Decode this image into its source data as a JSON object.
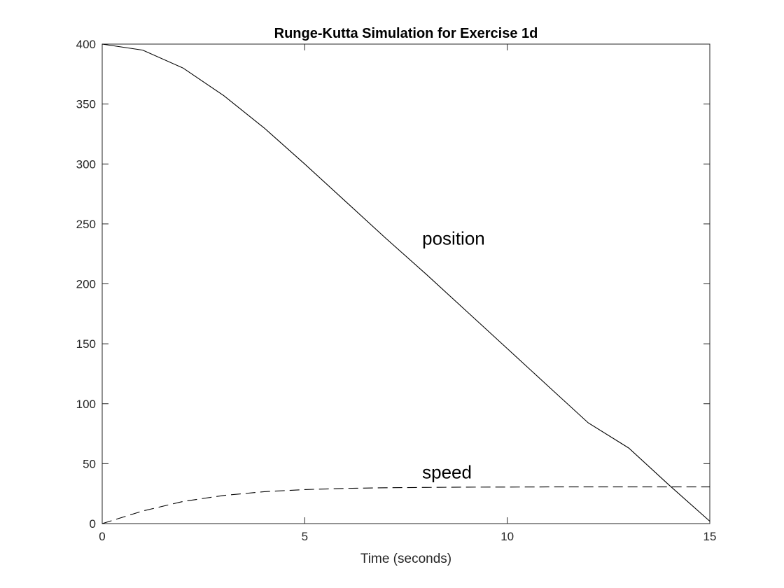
{
  "chart_data": {
    "type": "line",
    "title": "Runge-Kutta Simulation for Exercise 1d",
    "xlabel": "Time (seconds)",
    "ylabel": "",
    "xlim": [
      0,
      15
    ],
    "ylim": [
      0,
      400
    ],
    "xticks": [
      0,
      5,
      10,
      15
    ],
    "yticks": [
      0,
      50,
      100,
      150,
      200,
      250,
      300,
      350,
      400
    ],
    "grid": false,
    "annotations": [
      {
        "text": "position",
        "x": 7.9,
        "y": 238
      },
      {
        "text": "speed",
        "x": 7.9,
        "y": 43
      }
    ],
    "series": [
      {
        "name": "position",
        "style": "solid",
        "color": "#000000",
        "x": [
          0,
          1,
          2,
          3,
          4,
          5,
          6,
          7,
          8,
          9,
          10,
          11,
          12,
          13,
          14,
          15
        ],
        "y": [
          400,
          395,
          380,
          357,
          330,
          300,
          269,
          238,
          208,
          177,
          146,
          115,
          84,
          63,
          32,
          2
        ]
      },
      {
        "name": "speed",
        "style": "dashed",
        "color": "#000000",
        "x": [
          0,
          1,
          2,
          3,
          4,
          5,
          6,
          7,
          8,
          9,
          10,
          11,
          12,
          13,
          14,
          15
        ],
        "y": [
          0,
          10.5,
          18.5,
          23.5,
          26.6,
          28.4,
          29.4,
          29.9,
          30.2,
          30.4,
          30.5,
          30.6,
          30.6,
          30.6,
          30.6,
          30.6
        ]
      }
    ]
  }
}
